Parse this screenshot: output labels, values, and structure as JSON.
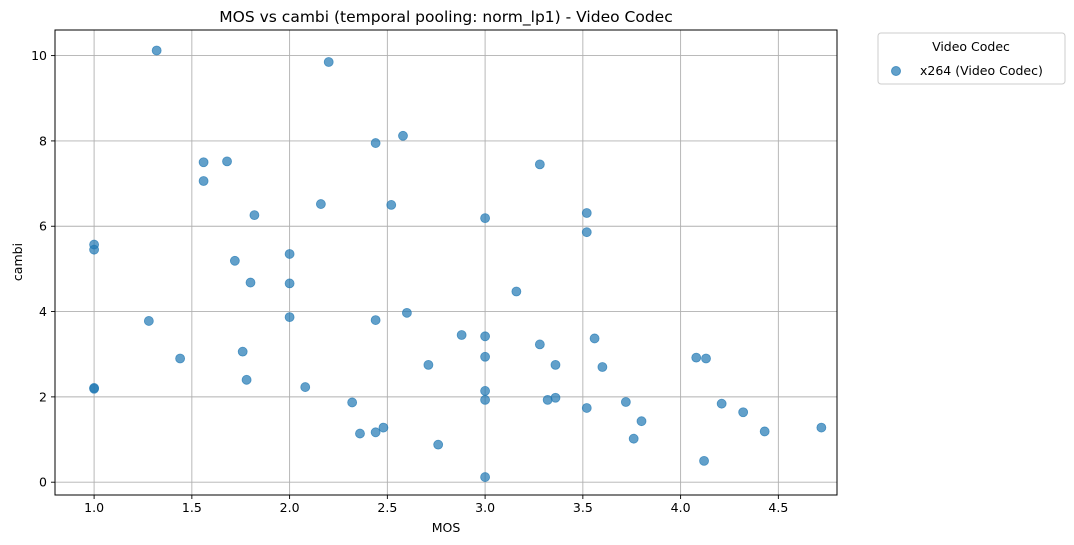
{
  "chart_data": {
    "type": "scatter",
    "title": "MOS vs cambi (temporal pooling: norm_lp1) - Video Codec",
    "xlabel": "MOS",
    "ylabel": "cambi",
    "xlim": [
      0.8,
      4.8
    ],
    "ylim": [
      -0.3,
      10.6
    ],
    "xticks": [
      1.0,
      1.5,
      2.0,
      2.5,
      3.0,
      3.5,
      4.0,
      4.5
    ],
    "xtick_labels": [
      "1.0",
      "1.5",
      "2.0",
      "2.5",
      "3.0",
      "3.5",
      "4.0",
      "4.5"
    ],
    "yticks": [
      0,
      2,
      4,
      6,
      8,
      10
    ],
    "ytick_labels": [
      "0",
      "2",
      "4",
      "6",
      "8",
      "10"
    ],
    "grid": true,
    "legend": {
      "title": "Video Codec",
      "placement": "outside-top-right"
    },
    "series": [
      {
        "name": "x264 (Video Codec)",
        "color": "#1f77b4",
        "alpha": 0.7,
        "points": [
          [
            1.0,
            5.57
          ],
          [
            1.0,
            5.45
          ],
          [
            1.0,
            2.21
          ],
          [
            1.0,
            2.19
          ],
          [
            1.28,
            3.78
          ],
          [
            1.32,
            10.12
          ],
          [
            1.44,
            2.9
          ],
          [
            1.56,
            7.5
          ],
          [
            1.56,
            7.06
          ],
          [
            1.68,
            7.52
          ],
          [
            1.72,
            5.19
          ],
          [
            1.76,
            3.06
          ],
          [
            1.78,
            2.4
          ],
          [
            1.8,
            4.68
          ],
          [
            1.82,
            6.26
          ],
          [
            2.0,
            5.35
          ],
          [
            2.0,
            4.66
          ],
          [
            2.0,
            3.87
          ],
          [
            2.08,
            2.23
          ],
          [
            2.16,
            6.52
          ],
          [
            2.2,
            9.85
          ],
          [
            2.32,
            1.87
          ],
          [
            2.36,
            1.14
          ],
          [
            2.44,
            7.95
          ],
          [
            2.44,
            3.8
          ],
          [
            2.44,
            1.17
          ],
          [
            2.48,
            1.28
          ],
          [
            2.52,
            6.5
          ],
          [
            2.58,
            8.12
          ],
          [
            2.6,
            3.97
          ],
          [
            2.71,
            2.75
          ],
          [
            2.76,
            0.88
          ],
          [
            2.88,
            3.45
          ],
          [
            3.0,
            6.19
          ],
          [
            3.0,
            3.42
          ],
          [
            3.0,
            2.94
          ],
          [
            3.0,
            2.14
          ],
          [
            3.0,
            1.93
          ],
          [
            3.0,
            0.12
          ],
          [
            3.16,
            4.47
          ],
          [
            3.28,
            7.45
          ],
          [
            3.28,
            3.23
          ],
          [
            3.32,
            1.93
          ],
          [
            3.36,
            2.75
          ],
          [
            3.36,
            1.98
          ],
          [
            3.52,
            6.31
          ],
          [
            3.52,
            5.86
          ],
          [
            3.52,
            1.74
          ],
          [
            3.56,
            3.37
          ],
          [
            3.6,
            2.7
          ],
          [
            3.72,
            1.88
          ],
          [
            3.76,
            1.02
          ],
          [
            3.8,
            1.43
          ],
          [
            4.08,
            2.92
          ],
          [
            4.12,
            0.5
          ],
          [
            4.13,
            2.9
          ],
          [
            4.21,
            1.84
          ],
          [
            4.32,
            1.64
          ],
          [
            4.43,
            1.19
          ],
          [
            4.72,
            1.28
          ]
        ]
      }
    ]
  }
}
